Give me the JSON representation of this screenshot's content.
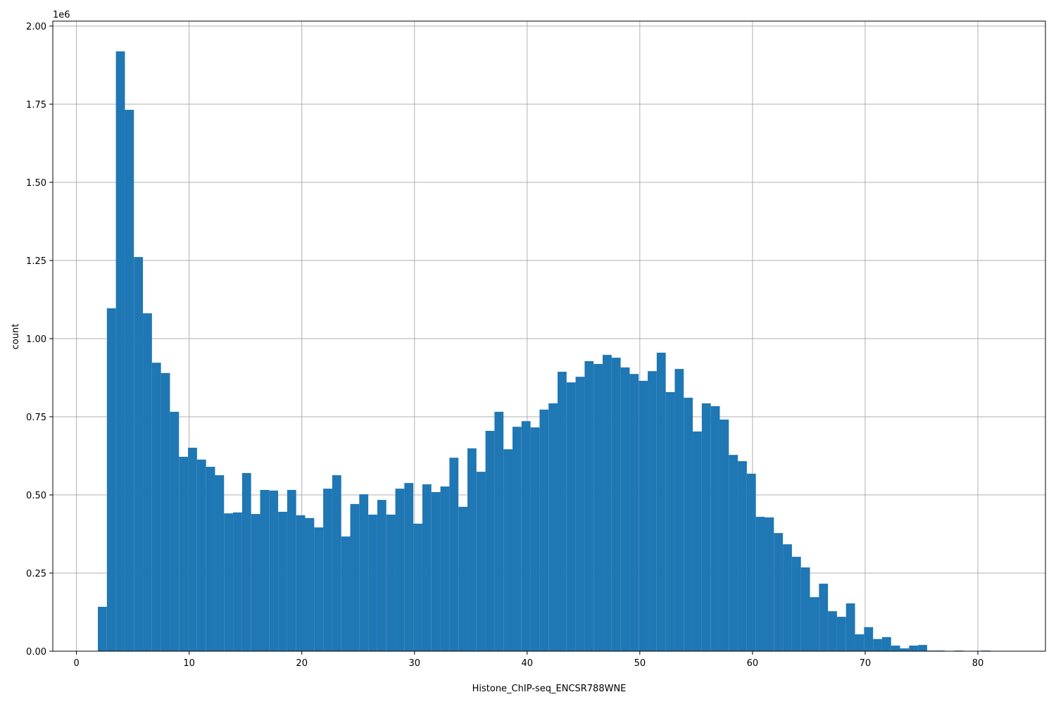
{
  "chart_data": {
    "type": "histogram",
    "xlabel": "Histone_ChIP-seq_ENCSR788WNE",
    "ylabel": "count",
    "y_offset_label": "1e6",
    "color": "#1f77b4",
    "grid": true,
    "xlim": [
      -2.1,
      86.0
    ],
    "ylim": [
      0,
      2015800
    ],
    "xticks": [
      0,
      10,
      20,
      30,
      40,
      50,
      60,
      70,
      80
    ],
    "yticks": [
      {
        "value": 0,
        "label": "0.00"
      },
      {
        "value": 250000,
        "label": "0.25"
      },
      {
        "value": 500000,
        "label": "0.50"
      },
      {
        "value": 750000,
        "label": "0.75"
      },
      {
        "value": 1000000,
        "label": "1.00"
      },
      {
        "value": 1250000,
        "label": "1.25"
      },
      {
        "value": 1500000,
        "label": "1.50"
      },
      {
        "value": 1750000,
        "label": "1.75"
      },
      {
        "value": 2000000,
        "label": "2.00"
      }
    ],
    "bins": [
      1.9,
      2.7,
      3.5,
      4.3,
      5.1,
      5.9,
      6.7,
      7.5,
      8.3,
      9.1,
      9.9,
      10.7,
      11.5,
      12.3,
      13.1,
      13.9,
      14.7,
      15.5,
      16.3,
      17.1,
      17.9,
      18.7,
      19.5,
      20.3,
      21.1,
      21.9,
      22.7,
      23.5,
      24.3,
      25.1,
      25.9,
      26.7,
      27.5,
      28.3,
      29.1,
      29.9,
      30.7,
      31.5,
      32.3,
      33.1,
      33.9,
      34.7,
      35.5,
      36.3,
      37.1,
      37.9,
      38.7,
      39.5,
      40.3,
      41.1,
      41.9,
      42.7,
      43.5,
      44.3,
      45.1,
      45.9,
      46.7,
      47.5,
      48.3,
      49.1,
      49.9,
      50.7,
      51.5,
      52.3,
      53.1,
      53.9,
      54.7,
      55.5,
      56.3,
      57.1,
      57.9,
      58.7,
      59.5,
      60.3,
      61.1,
      61.9,
      62.7,
      63.5,
      64.3,
      65.1,
      65.9,
      66.7,
      67.5,
      68.3,
      69.1,
      69.9,
      70.7,
      71.5,
      72.3,
      73.1,
      73.9,
      74.7,
      75.5,
      76.3,
      77.1,
      77.9,
      78.7,
      79.5,
      80.3,
      81.1,
      81.9
    ],
    "values": [
      142000,
      1097000,
      1919000,
      1732000,
      1261000,
      1081000,
      923000,
      890000,
      766000,
      622000,
      651000,
      613000,
      590000,
      563000,
      441000,
      444000,
      570000,
      439000,
      516000,
      514000,
      446000,
      516000,
      435000,
      426000,
      396000,
      520000,
      563000,
      367000,
      471000,
      502000,
      437000,
      484000,
      437000,
      520000,
      538000,
      408000,
      534000,
      509000,
      527000,
      619000,
      462000,
      649000,
      574000,
      705000,
      766000,
      646000,
      718000,
      736000,
      716000,
      773000,
      793000,
      894000,
      860000,
      878000,
      928000,
      919000,
      948000,
      939000,
      908000,
      887000,
      865000,
      896000,
      955000,
      829000,
      903000,
      811000,
      703000,
      793000,
      784000,
      741000,
      628000,
      608000,
      568000,
      430000,
      428000,
      378000,
      342000,
      302000,
      268000,
      173000,
      216000,
      128000,
      110000,
      153000,
      54000,
      77000,
      39000,
      45000,
      18000,
      9000,
      18000,
      20000,
      2000,
      2000,
      500,
      2000,
      300,
      300,
      2000,
      300
    ]
  }
}
